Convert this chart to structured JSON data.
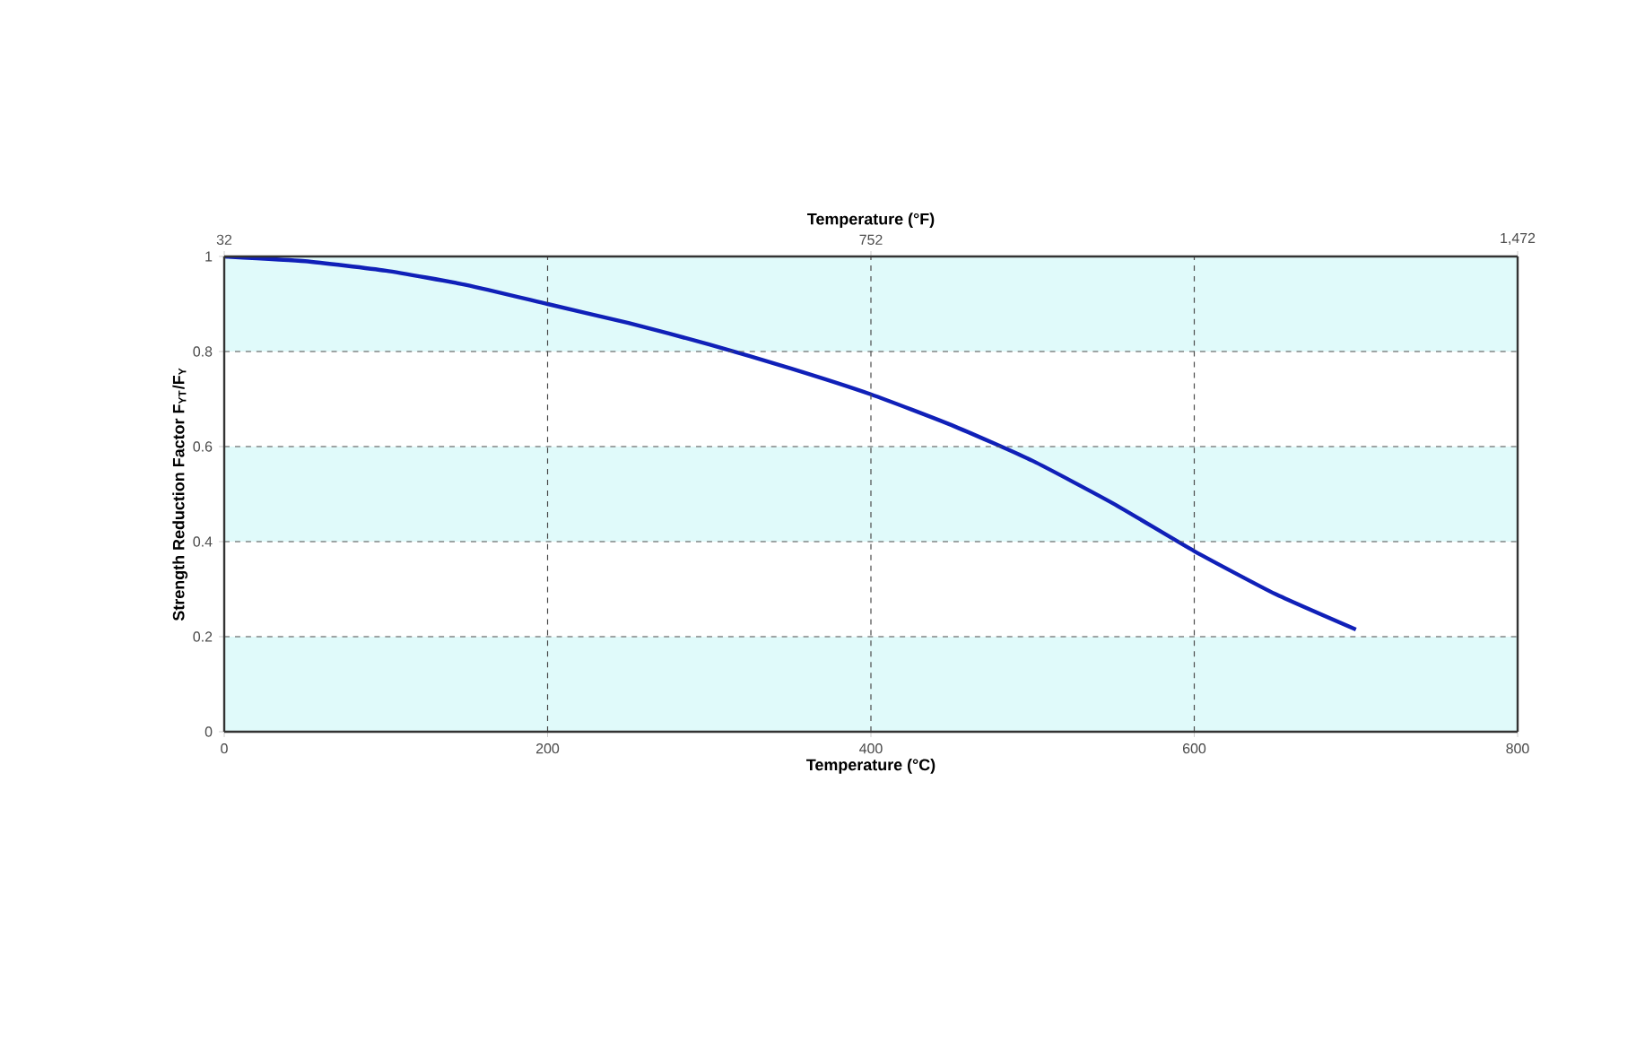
{
  "chart_data": {
    "type": "line",
    "xlabel": "Temperature (°C)",
    "ylabel": "Strength Reduction Factor F$_{YT}$/F$_{Y}$",
    "x2label": "Temperature (°F)",
    "x": [
      0,
      50,
      100,
      150,
      200,
      250,
      300,
      350,
      400,
      450,
      500,
      550,
      600,
      650,
      700
    ],
    "series": [
      {
        "color": "#1020b8",
        "values": [
          1.0,
          0.99,
          0.97,
          0.94,
          0.9,
          0.86,
          0.815,
          0.765,
          0.71,
          0.645,
          0.57,
          0.48,
          0.38,
          0.29,
          0.215
        ]
      }
    ],
    "xlim": [
      0,
      800
    ],
    "xticks": [
      0,
      200,
      400,
      600,
      800
    ],
    "ylim": [
      0,
      1
    ],
    "yticks": [
      0,
      0.2,
      0.4,
      0.6,
      0.8,
      1
    ],
    "x2lim": [
      32,
      1472
    ],
    "x2ticks": [
      32,
      752,
      {
        "value": 1472,
        "label": "1,472"
      }
    ],
    "bands": [
      {
        "axis": "y",
        "from": 0,
        "to": 0.2,
        "color": "#e0fafa"
      },
      {
        "axis": "y",
        "from": 0.4,
        "to": 0.6,
        "color": "#e0fafa"
      },
      {
        "axis": "y",
        "from": 0.8,
        "to": 1,
        "color": "#e0fafa"
      }
    ],
    "grid": true,
    "line_style": "solid",
    "marker": "none",
    "legend": false
  }
}
